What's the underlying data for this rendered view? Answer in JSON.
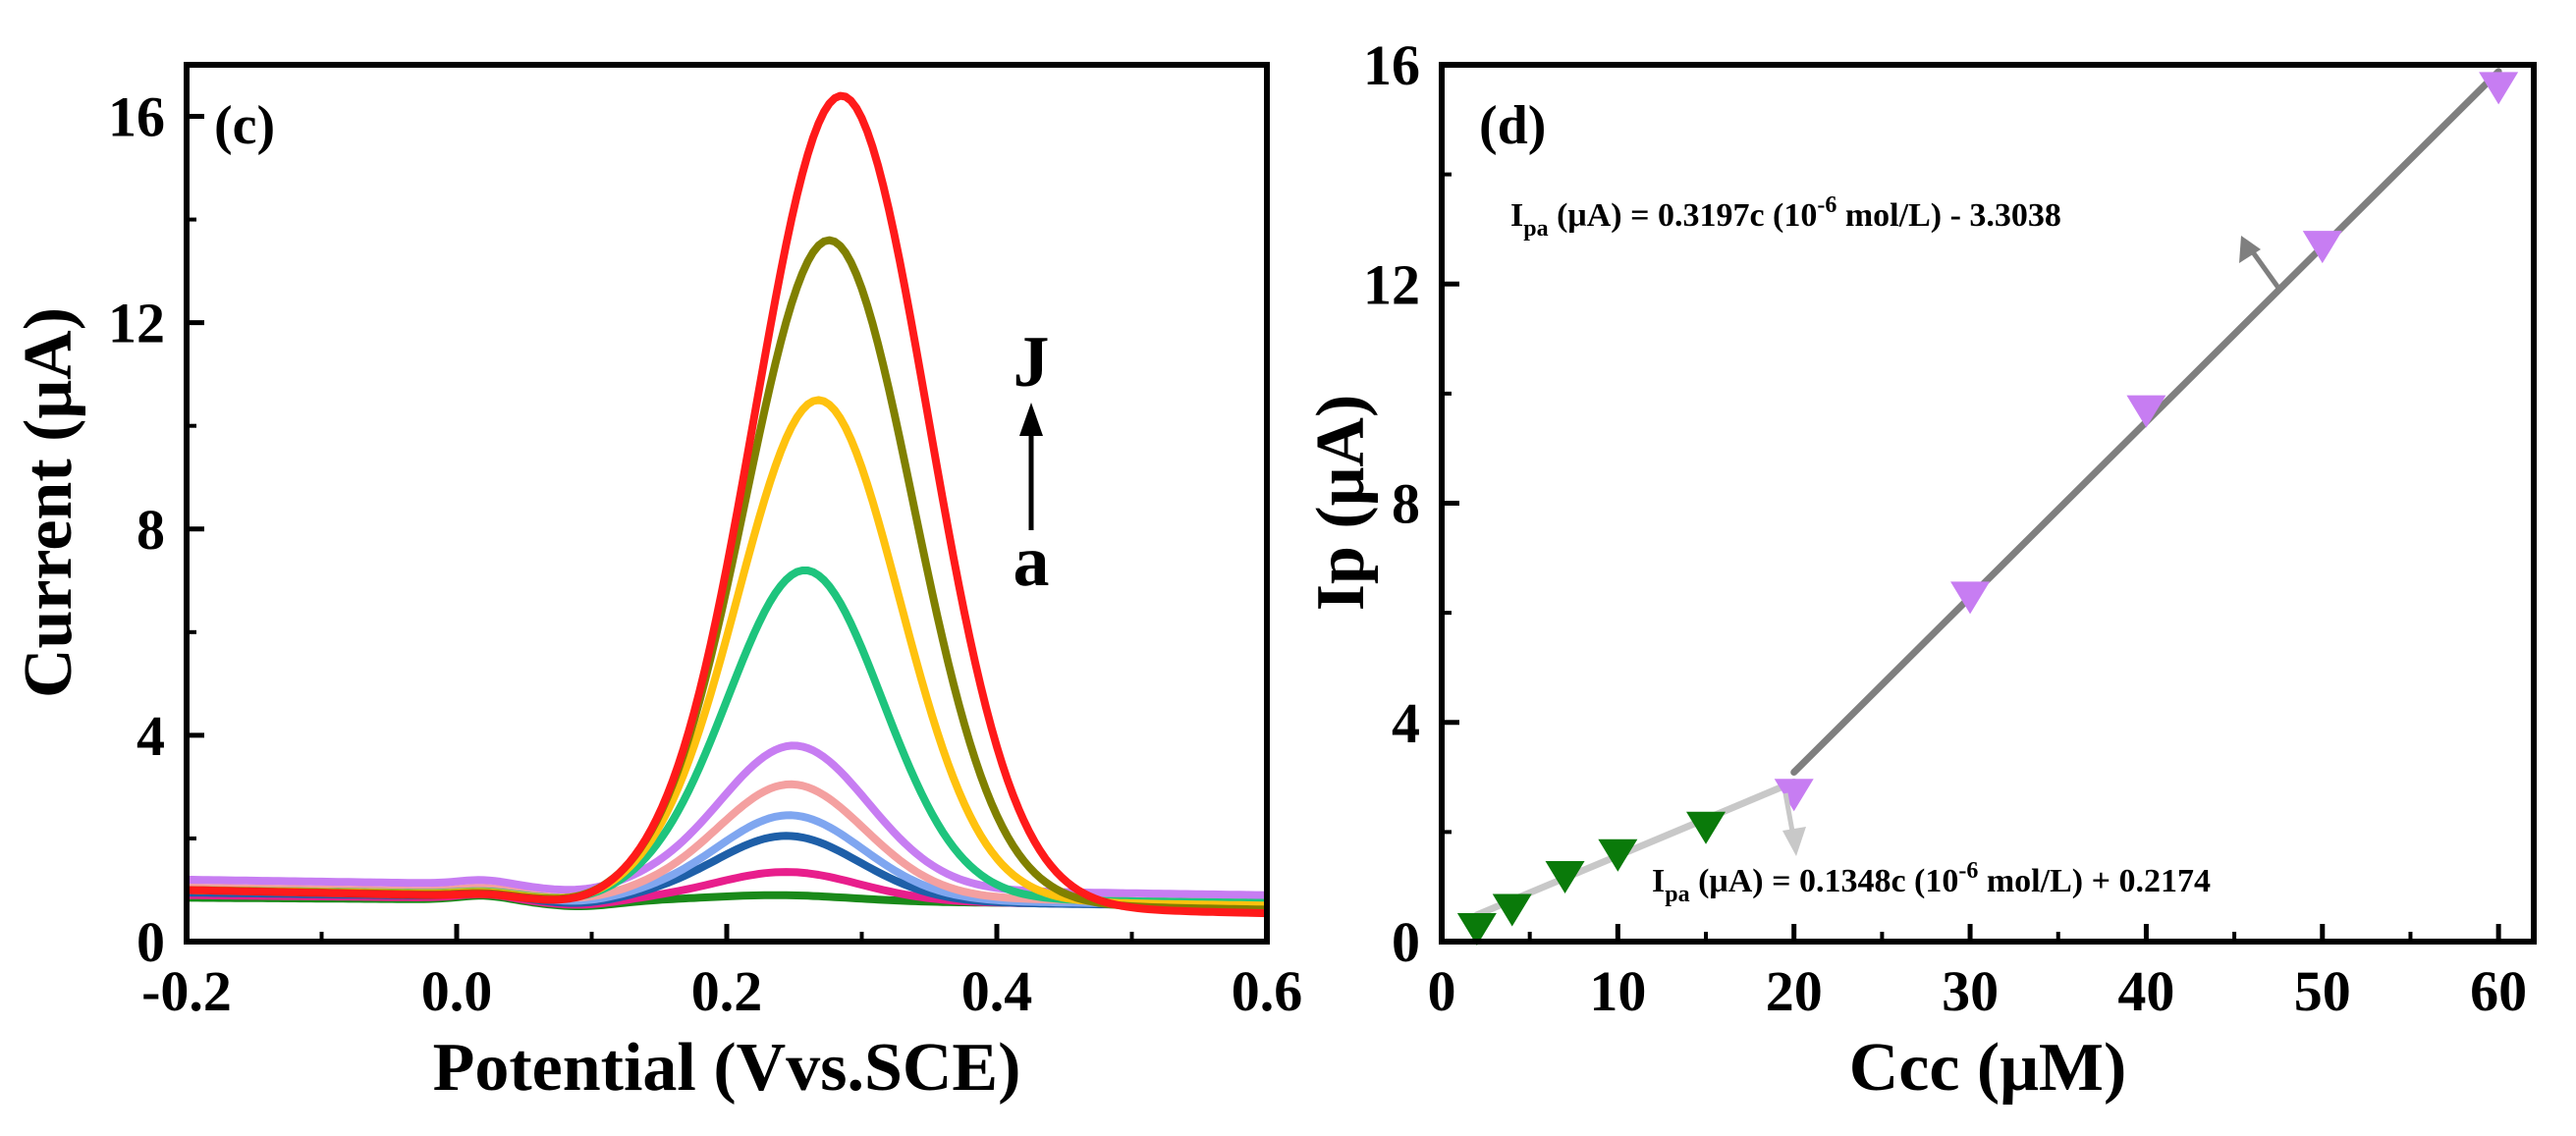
{
  "chart_data": [
    {
      "type": "line",
      "panel_label": "(c)",
      "xlabel": "Potential (Vvs.SCE)",
      "ylabel": "Current (μA)",
      "xlim": [
        -0.2,
        0.6
      ],
      "ylim": [
        0,
        17
      ],
      "xticks": [
        -0.2,
        0.0,
        0.2,
        0.4,
        0.6
      ],
      "xtick_labels": [
        "-0.2",
        "0.0",
        "0.2",
        "0.4",
        "0.6"
      ],
      "yticks": [
        0,
        4,
        8,
        12,
        16
      ],
      "ytick_labels": [
        "0",
        "4",
        "8",
        "12",
        "16"
      ],
      "annotation": {
        "start": "a",
        "end": "J"
      },
      "series": [
        {
          "color": "#1a8a1a",
          "peak_potential": 0.24,
          "peak_current": 0.9,
          "baseline_left": 0.85,
          "baseline_right": 0.72
        },
        {
          "color": "#e81e8c",
          "peak_potential": 0.245,
          "peak_current": 1.35,
          "baseline_left": 0.9,
          "baseline_right": 0.7
        },
        {
          "color": "#1e5fa8",
          "peak_potential": 0.245,
          "peak_current": 2.05,
          "baseline_left": 0.95,
          "baseline_right": 0.68
        },
        {
          "color": "#7fa6f0",
          "peak_potential": 0.247,
          "peak_current": 2.45,
          "baseline_left": 1.0,
          "baseline_right": 0.7
        },
        {
          "color": "#f4a0a0",
          "peak_potential": 0.248,
          "peak_current": 3.05,
          "baseline_left": 1.05,
          "baseline_right": 0.75
        },
        {
          "color": "#c77df2",
          "peak_potential": 0.25,
          "peak_current": 3.8,
          "baseline_left": 1.2,
          "baseline_right": 0.9
        },
        {
          "color": "#1ec47d",
          "peak_potential": 0.258,
          "peak_current": 7.2,
          "baseline_left": 1.0,
          "baseline_right": 0.75
        },
        {
          "color": "#ffc20e",
          "peak_potential": 0.268,
          "peak_current": 10.5,
          "baseline_left": 1.0,
          "baseline_right": 0.7
        },
        {
          "color": "#808000",
          "peak_potential": 0.276,
          "peak_current": 13.6,
          "baseline_left": 1.0,
          "baseline_right": 0.62
        },
        {
          "color": "#ff1a1a",
          "peak_potential": 0.285,
          "peak_current": 16.4,
          "baseline_left": 1.0,
          "baseline_right": 0.55
        }
      ]
    },
    {
      "type": "scatter",
      "panel_label": "(d)",
      "xlabel": "Ccc (μM)",
      "ylabel": "Ip (μA)",
      "xlim": [
        0,
        62
      ],
      "ylim": [
        0,
        16
      ],
      "xticks": [
        0,
        10,
        20,
        30,
        40,
        50,
        60
      ],
      "xtick_labels": [
        "0",
        "10",
        "20",
        "30",
        "40",
        "50",
        "60"
      ],
      "yticks": [
        0,
        4,
        8,
        12,
        16
      ],
      "ytick_labels": [
        "0",
        "4",
        "8",
        "12",
        "16"
      ],
      "series": [
        {
          "color": "#0a7a0a",
          "x": [
            2,
            4,
            7,
            10,
            15
          ],
          "y": [
            0.25,
            0.6,
            1.2,
            1.6,
            2.1
          ],
          "fit": {
            "slope": 0.1348,
            "intercept": 0.2174,
            "x_range": [
              2,
              20
            ],
            "color": "#c8c8c8"
          },
          "equation": {
            "main": "I",
            "sub": "pa",
            "text": " (μA) = 0.1348c (10",
            "sup": "-6",
            "tail": " mol/L) + 0.2174"
          }
        },
        {
          "color": "#c77df2",
          "x": [
            20,
            30,
            40,
            50,
            60
          ],
          "y": [
            2.7,
            6.3,
            9.7,
            12.7,
            15.6
          ],
          "fit": {
            "slope": 0.3197,
            "intercept": -3.3038,
            "x_range": [
              20,
              60
            ],
            "color": "#7f7f7f"
          },
          "equation": {
            "main": "I",
            "sub": "pa",
            "text": " (μA) = 0.3197c (10",
            "sup": "-6",
            "tail": " mol/L) - 3.3038"
          }
        }
      ]
    }
  ]
}
